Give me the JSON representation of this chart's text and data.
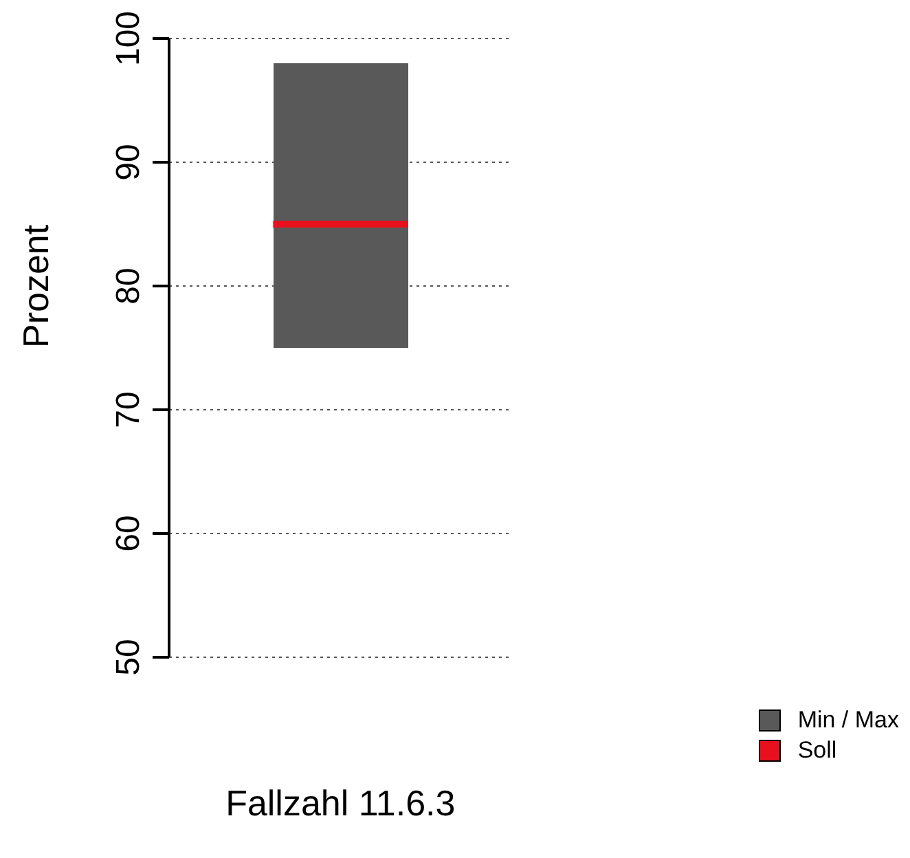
{
  "chart_data": {
    "type": "bar",
    "xlabel": "Fallzahl 11.6.3",
    "ylabel": "Prozent",
    "categories": [
      null
    ],
    "series": [
      {
        "name": "Min / Max",
        "color": "#595959",
        "values": [
          23
        ],
        "base": [
          75
        ]
      }
    ],
    "ref_lines": [
      {
        "axis": "y",
        "value": 85,
        "label": "Soll",
        "color": "#e8101c"
      }
    ],
    "ylim": [
      50,
      100
    ],
    "yticks": [
      50,
      60,
      70,
      80,
      90,
      100
    ],
    "grid": "y",
    "legend": "bottom right"
  }
}
